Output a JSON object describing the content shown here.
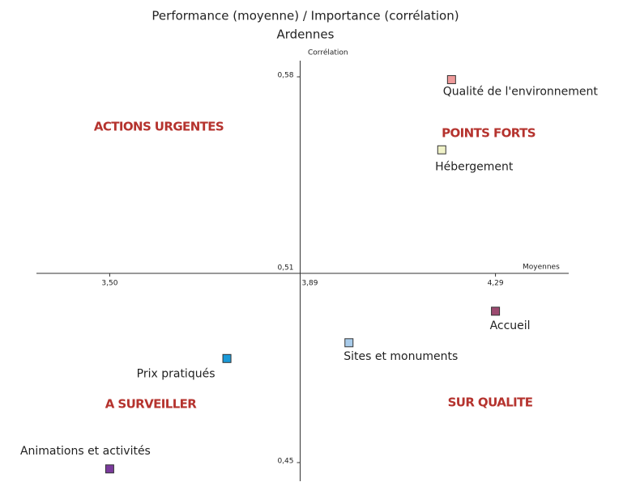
{
  "chart_data": {
    "type": "scatter",
    "title": "Performance (moyenne) / Importance (corrélation)",
    "subtitle": "Ardennes",
    "y_axis_label": "Corrélation",
    "x_axis_label": "Moyennes",
    "xlim": [
      3.35,
      4.44
    ],
    "ylim": [
      0.445,
      0.585
    ],
    "xticks": [
      {
        "value": 3.5,
        "label": "3,50"
      },
      {
        "value": 3.89,
        "label": "3,89"
      },
      {
        "value": 4.29,
        "label": "4,29"
      }
    ],
    "yticks": [
      {
        "value": 0.45,
        "label": "0,45"
      },
      {
        "value": 0.51,
        "label": "0,51"
      },
      {
        "value": 0.58,
        "label": "0,58"
      }
    ],
    "quadrants": [
      "ACTIONS URGENTES",
      "POINTS FORTS",
      "A SURVEILLER",
      "SUR QUALITE"
    ],
    "quadrant_color": "#b5332e",
    "series": [
      {
        "name": "Qualité de l'environnement",
        "color": "#ee9a9a",
        "x": [
          4.2
        ],
        "values": [
          0.579
        ]
      },
      {
        "name": "Hébergement",
        "color": "#f0f2c8",
        "x": [
          4.18
        ],
        "values": [
          0.554
        ]
      },
      {
        "name": "Accueil",
        "color": "#9c4a70",
        "x": [
          4.29
        ],
        "values": [
          0.498
        ]
      },
      {
        "name": "Sites et monuments",
        "color": "#a8cbea",
        "x": [
          3.99
        ],
        "values": [
          0.488
        ]
      },
      {
        "name": "Prix pratiqués",
        "color": "#1a9ad8",
        "x": [
          3.74
        ],
        "values": [
          0.483
        ]
      },
      {
        "name": "Animations et activités",
        "color": "#7a3a9c",
        "x": [
          3.5
        ],
        "values": [
          0.448
        ]
      }
    ]
  }
}
